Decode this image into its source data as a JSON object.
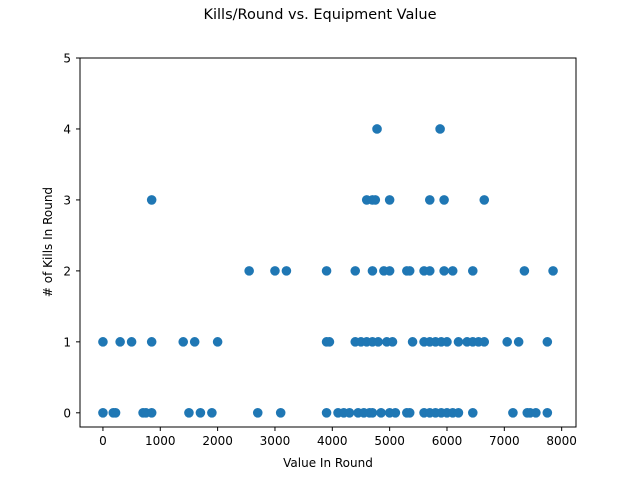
{
  "chart_data": {
    "type": "scatter",
    "title": "Kills/Round vs. Equipment Value",
    "xlabel": "Value In Round",
    "ylabel": "# of Kills In Round",
    "xlim": [
      -400,
      8250
    ],
    "ylim": [
      -0.2,
      5
    ],
    "xticks": [
      0,
      1000,
      2000,
      3000,
      4000,
      5000,
      6000,
      7000,
      8000
    ],
    "yticks": [
      0,
      1,
      2,
      3,
      4,
      5
    ],
    "marker_color": "#1f77b4",
    "grid": false,
    "points": [
      {
        "x": 0,
        "y": 1
      },
      {
        "x": 0,
        "y": 0
      },
      {
        "x": 180,
        "y": 0
      },
      {
        "x": 220,
        "y": 0
      },
      {
        "x": 300,
        "y": 1
      },
      {
        "x": 500,
        "y": 1
      },
      {
        "x": 700,
        "y": 0
      },
      {
        "x": 750,
        "y": 0
      },
      {
        "x": 850,
        "y": 3
      },
      {
        "x": 850,
        "y": 1
      },
      {
        "x": 850,
        "y": 0
      },
      {
        "x": 1400,
        "y": 1
      },
      {
        "x": 1500,
        "y": 0
      },
      {
        "x": 1600,
        "y": 1
      },
      {
        "x": 1700,
        "y": 0
      },
      {
        "x": 1900,
        "y": 0
      },
      {
        "x": 2000,
        "y": 1
      },
      {
        "x": 2550,
        "y": 2
      },
      {
        "x": 2700,
        "y": 0
      },
      {
        "x": 3000,
        "y": 2
      },
      {
        "x": 3100,
        "y": 0
      },
      {
        "x": 3200,
        "y": 2
      },
      {
        "x": 3900,
        "y": 2
      },
      {
        "x": 3900,
        "y": 1
      },
      {
        "x": 3950,
        "y": 1
      },
      {
        "x": 3900,
        "y": 0
      },
      {
        "x": 4100,
        "y": 0
      },
      {
        "x": 4200,
        "y": 0
      },
      {
        "x": 4300,
        "y": 0
      },
      {
        "x": 4400,
        "y": 2
      },
      {
        "x": 4400,
        "y": 1
      },
      {
        "x": 4450,
        "y": 0
      },
      {
        "x": 4500,
        "y": 1
      },
      {
        "x": 4550,
        "y": 0
      },
      {
        "x": 4600,
        "y": 3
      },
      {
        "x": 4600,
        "y": 1
      },
      {
        "x": 4650,
        "y": 0
      },
      {
        "x": 4700,
        "y": 3
      },
      {
        "x": 4700,
        "y": 2
      },
      {
        "x": 4700,
        "y": 1
      },
      {
        "x": 4700,
        "y": 0
      },
      {
        "x": 4750,
        "y": 3
      },
      {
        "x": 4780,
        "y": 4
      },
      {
        "x": 4800,
        "y": 1
      },
      {
        "x": 4850,
        "y": 0
      },
      {
        "x": 4900,
        "y": 2
      },
      {
        "x": 4950,
        "y": 1
      },
      {
        "x": 5000,
        "y": 3
      },
      {
        "x": 5000,
        "y": 2
      },
      {
        "x": 5000,
        "y": 0
      },
      {
        "x": 5050,
        "y": 1
      },
      {
        "x": 5100,
        "y": 0
      },
      {
        "x": 5300,
        "y": 2
      },
      {
        "x": 5300,
        "y": 0
      },
      {
        "x": 5350,
        "y": 2
      },
      {
        "x": 5350,
        "y": 0
      },
      {
        "x": 5400,
        "y": 1
      },
      {
        "x": 5600,
        "y": 2
      },
      {
        "x": 5600,
        "y": 1
      },
      {
        "x": 5600,
        "y": 0
      },
      {
        "x": 5700,
        "y": 3
      },
      {
        "x": 5700,
        "y": 2
      },
      {
        "x": 5700,
        "y": 1
      },
      {
        "x": 5700,
        "y": 0
      },
      {
        "x": 5800,
        "y": 1
      },
      {
        "x": 5800,
        "y": 0
      },
      {
        "x": 5880,
        "y": 4
      },
      {
        "x": 5900,
        "y": 1
      },
      {
        "x": 5900,
        "y": 0
      },
      {
        "x": 5950,
        "y": 3
      },
      {
        "x": 5950,
        "y": 2
      },
      {
        "x": 6000,
        "y": 1
      },
      {
        "x": 6000,
        "y": 0
      },
      {
        "x": 6100,
        "y": 2
      },
      {
        "x": 6100,
        "y": 0
      },
      {
        "x": 6200,
        "y": 1
      },
      {
        "x": 6200,
        "y": 0
      },
      {
        "x": 6350,
        "y": 1
      },
      {
        "x": 6450,
        "y": 2
      },
      {
        "x": 6450,
        "y": 1
      },
      {
        "x": 6450,
        "y": 0
      },
      {
        "x": 6550,
        "y": 1
      },
      {
        "x": 6650,
        "y": 3
      },
      {
        "x": 6650,
        "y": 1
      },
      {
        "x": 7050,
        "y": 1
      },
      {
        "x": 7150,
        "y": 0
      },
      {
        "x": 7250,
        "y": 1
      },
      {
        "x": 7350,
        "y": 2
      },
      {
        "x": 7400,
        "y": 0
      },
      {
        "x": 7450,
        "y": 0
      },
      {
        "x": 7550,
        "y": 0
      },
      {
        "x": 7750,
        "y": 1
      },
      {
        "x": 7750,
        "y": 0
      },
      {
        "x": 7850,
        "y": 2
      }
    ]
  }
}
